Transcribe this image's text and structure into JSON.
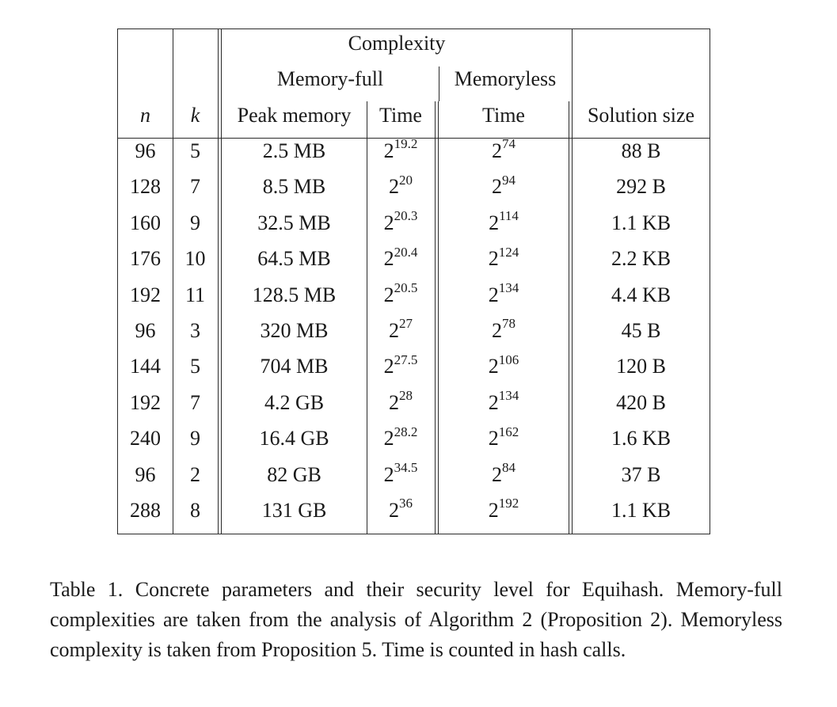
{
  "table": {
    "header": {
      "complexity": "Complexity",
      "memory_full": "Memory-full",
      "memoryless": "Memoryless",
      "col_n": "n",
      "col_k": "k",
      "col_peak_memory": "Peak memory",
      "col_time_full": "Time",
      "col_time_less": "Time",
      "col_solution_size": "Solution size"
    },
    "rows": [
      {
        "n": "96",
        "k": "5",
        "peak": "2.5 MB",
        "tf_base": "2",
        "tf_exp": "19.2",
        "tl_base": "2",
        "tl_exp": "74",
        "size": "88 B"
      },
      {
        "n": "128",
        "k": "7",
        "peak": "8.5 MB",
        "tf_base": "2",
        "tf_exp": "20",
        "tl_base": "2",
        "tl_exp": "94",
        "size": "292 B"
      },
      {
        "n": "160",
        "k": "9",
        "peak": "32.5 MB",
        "tf_base": "2",
        "tf_exp": "20.3",
        "tl_base": "2",
        "tl_exp": "114",
        "size": "1.1 KB"
      },
      {
        "n": "176",
        "k": "10",
        "peak": "64.5 MB",
        "tf_base": "2",
        "tf_exp": "20.4",
        "tl_base": "2",
        "tl_exp": "124",
        "size": "2.2 KB"
      },
      {
        "n": "192",
        "k": "11",
        "peak": "128.5 MB",
        "tf_base": "2",
        "tf_exp": "20.5",
        "tl_base": "2",
        "tl_exp": "134",
        "size": "4.4 KB"
      },
      {
        "n": "96",
        "k": "3",
        "peak": "320 MB",
        "tf_base": "2",
        "tf_exp": "27",
        "tl_base": "2",
        "tl_exp": "78",
        "size": "45 B"
      },
      {
        "n": "144",
        "k": "5",
        "peak": "704 MB",
        "tf_base": "2",
        "tf_exp": "27.5",
        "tl_base": "2",
        "tl_exp": "106",
        "size": "120 B"
      },
      {
        "n": "192",
        "k": "7",
        "peak": "4.2 GB",
        "tf_base": "2",
        "tf_exp": "28",
        "tl_base": "2",
        "tl_exp": "134",
        "size": "420 B"
      },
      {
        "n": "240",
        "k": "9",
        "peak": "16.4 GB",
        "tf_base": "2",
        "tf_exp": "28.2",
        "tl_base": "2",
        "tl_exp": "162",
        "size": "1.6 KB"
      },
      {
        "n": "96",
        "k": "2",
        "peak": "82 GB",
        "tf_base": "2",
        "tf_exp": "34.5",
        "tl_base": "2",
        "tl_exp": "84",
        "size": "37 B"
      },
      {
        "n": "288",
        "k": "8",
        "peak": "131 GB",
        "tf_base": "2",
        "tf_exp": "36",
        "tl_base": "2",
        "tl_exp": "192",
        "size": "1.1 KB"
      }
    ]
  },
  "caption": "Table 1. Concrete parameters and their security level for Equihash. Memory-full complexities are taken from the analysis of Algorithm 2 (Proposition 2). Memoryless complexity is taken from Proposition 5. Time is counted in hash calls."
}
